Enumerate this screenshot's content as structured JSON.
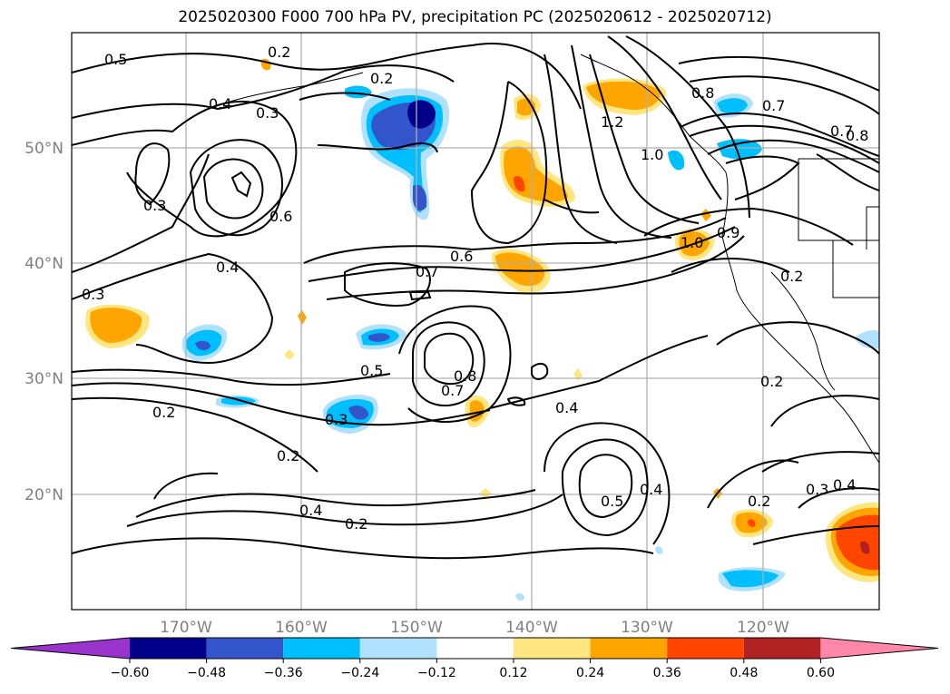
{
  "title": "2025020300 F000 700 hPa PV, precipitation PC (2025020612 - 2025020712)",
  "latitude_labels": [
    "50°N",
    "40°N",
    "30°N",
    "20°N"
  ],
  "longitude_labels": [
    "170°W",
    "160°W",
    "150°W",
    "140°W",
    "130°W",
    "120°W"
  ],
  "pv_contour_labels": [
    "0.5",
    "0.2",
    "0.2",
    "0.4",
    "0.3",
    "0.3",
    "0.6",
    "0.4",
    "0.3",
    "0.7",
    "0.6",
    "0.2",
    "0.3",
    "0.5",
    "0.8",
    "0.7",
    "0.4",
    "0.2",
    "0.2",
    "0.4",
    "0.2",
    "0.5",
    "0.4",
    "1.2",
    "1.0",
    "0.8",
    "0.7",
    "0.7",
    "0.8",
    "1.0",
    "0.9",
    "0.2",
    "0.2",
    "0.3",
    "0.4"
  ],
  "colorbar": {
    "tick_labels": [
      "−0.60",
      "−0.48",
      "−0.36",
      "−0.24",
      "−0.12",
      "0.12",
      "0.24",
      "0.36",
      "0.48",
      "0.60"
    ],
    "colors": [
      "#9933cc",
      "#00008b",
      "#3355cc",
      "#00bfff",
      "#b0e2ff",
      "#ffffff",
      "#ffe680",
      "#ffa500",
      "#ff4500",
      "#b22222",
      "#ff88aa"
    ]
  }
}
